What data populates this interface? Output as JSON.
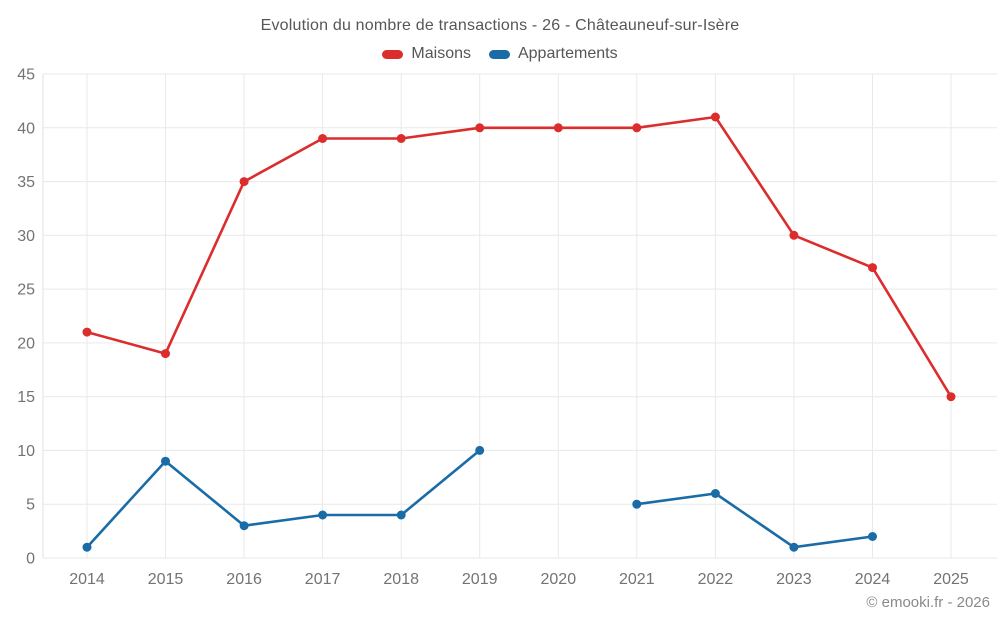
{
  "chart": {
    "title": "Evolution du nombre de transactions - 26 - Châteauneuf-sur-Isère",
    "copyright": "© emooki.fr - 2026"
  },
  "chart_data": {
    "type": "line",
    "title": "Evolution du nombre de transactions - 26 - Châteauneuf-sur-Isère",
    "categories": [
      "2014",
      "2015",
      "2016",
      "2017",
      "2018",
      "2019",
      "2020",
      "2021",
      "2022",
      "2023",
      "2024",
      "2025"
    ],
    "series": [
      {
        "name": "Maisons",
        "color": "#dc2d2d",
        "values": [
          21,
          19,
          35,
          39,
          39,
          40,
          40,
          40,
          41,
          30,
          27,
          15
        ]
      },
      {
        "name": "Appartements",
        "color": "#1a6ca6",
        "values": [
          1,
          9,
          3,
          4,
          4,
          10,
          null,
          5,
          6,
          1,
          2,
          null
        ]
      }
    ],
    "xlabel": "",
    "ylabel": "",
    "ylim": [
      0,
      45
    ],
    "ytick_step": 5,
    "grid": true,
    "legend_position": "top",
    "marker_radius": 4.5,
    "text_colors": {
      "title": "#565656",
      "ticks": "#737373",
      "copyright": "#8a8a8a"
    },
    "grid_color": "#e9e9e9"
  }
}
